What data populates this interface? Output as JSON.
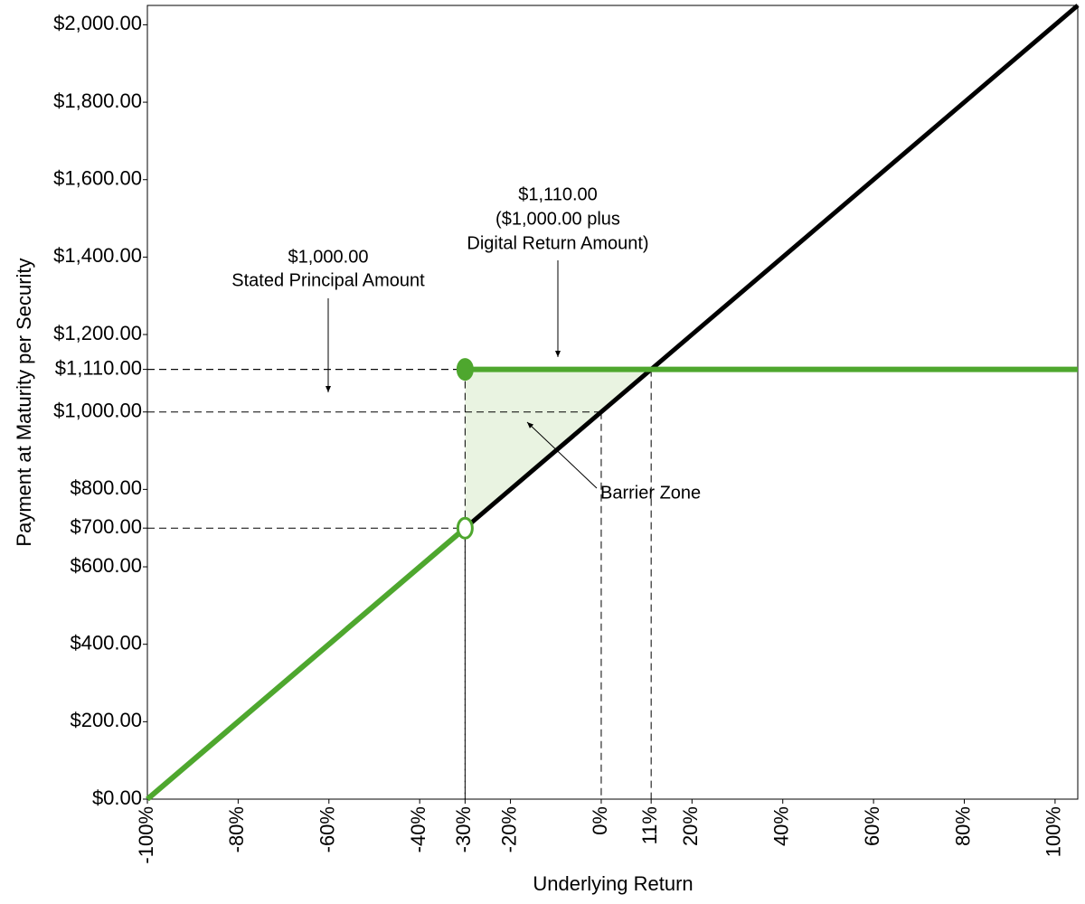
{
  "chart_data": {
    "type": "line",
    "x_label": "Underlying Return",
    "y_label": "Payment at Maturity per Security",
    "xlim": [
      -100,
      105
    ],
    "ylim": [
      0,
      2050
    ],
    "xticks": [
      {
        "value": -100,
        "label": "-100%"
      },
      {
        "value": -80,
        "label": "-80%"
      },
      {
        "value": -60,
        "label": "-60%"
      },
      {
        "value": -40,
        "label": "-40%"
      },
      {
        "value": -30,
        "label": "-30%"
      },
      {
        "value": -20,
        "label": "-20%"
      },
      {
        "value": 0,
        "label": "0%"
      },
      {
        "value": 11,
        "label": "11%"
      },
      {
        "value": 20,
        "label": "20%"
      },
      {
        "value": 40,
        "label": "40%"
      },
      {
        "value": 60,
        "label": "60%"
      },
      {
        "value": 80,
        "label": "80%"
      },
      {
        "value": 100,
        "label": "100%"
      }
    ],
    "yticks": [
      {
        "value": 0,
        "label": "$0.00"
      },
      {
        "value": 200,
        "label": "$200.00"
      },
      {
        "value": 400,
        "label": "$400.00"
      },
      {
        "value": 600,
        "label": "$600.00"
      },
      {
        "value": 700,
        "label": "$700.00"
      },
      {
        "value": 800,
        "label": "$800.00"
      },
      {
        "value": 1000,
        "label": "$1,000.00"
      },
      {
        "value": 1110,
        "label": "$1,110.00"
      },
      {
        "value": 1200,
        "label": "$1,200.00"
      },
      {
        "value": 1400,
        "label": "$1,400.00"
      },
      {
        "value": 1600,
        "label": "$1,600.00"
      },
      {
        "value": 1800,
        "label": "$1,800.00"
      },
      {
        "value": 2000,
        "label": "$2,000.00"
      }
    ],
    "series": [
      {
        "color": "#000000",
        "x": [
          -100,
          105
        ],
        "values": [
          0,
          2050
        ]
      },
      {
        "color": "#4ea72e",
        "x": [
          -100,
          -30
        ],
        "values": [
          0,
          700
        ]
      },
      {
        "color": "#4ea72e",
        "x": [
          -30,
          105
        ],
        "values": [
          1110,
          1110
        ]
      }
    ],
    "markers": [
      {
        "x": -30,
        "y": 1110,
        "filled": true,
        "color": "#4ea72e"
      },
      {
        "x": -30,
        "y": 700,
        "filled": false,
        "color": "#4ea72e"
      }
    ],
    "shaded_area": {
      "x": [
        -30,
        -30,
        11
      ],
      "y": [
        700,
        1110,
        1110
      ],
      "color": "#e9f3e1"
    },
    "guides": {
      "x": [
        -30,
        -30,
        0,
        11
      ],
      "y": [
        1110,
        700,
        1000,
        1110
      ]
    },
    "annotations": [
      {
        "lines": [
          "$1,000.00",
          "Stated Principal Amount"
        ]
      },
      {
        "lines": [
          "$1,110.00",
          "($1,000.00 plus",
          "Digital Return Amount)"
        ]
      },
      {
        "lines": [
          "Barrier Zone"
        ]
      }
    ]
  }
}
